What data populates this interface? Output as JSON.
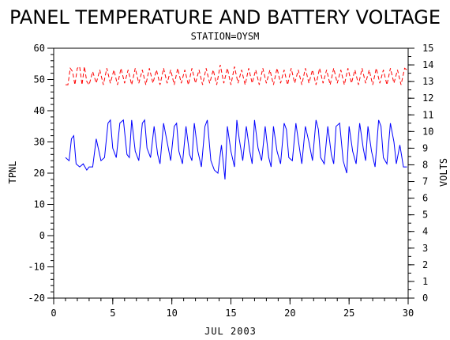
{
  "chart_data": {
    "type": "line",
    "title": "PANEL TEMPERATURE AND BATTERY VOLTAGE",
    "subtitle": "STATION=OYSM",
    "xlabel": "JUL 2003",
    "ylabel_left": "TPNL",
    "ylabel_right": "VOLTS",
    "xlim": [
      0,
      30
    ],
    "ylim_left": [
      -20,
      60
    ],
    "ylim_right": [
      0,
      15
    ],
    "x_ticks": [
      0,
      5,
      10,
      15,
      20,
      25,
      30
    ],
    "y_left_ticks": [
      -20,
      -10,
      0,
      10,
      20,
      30,
      40,
      50,
      60
    ],
    "y_right_ticks": [
      0,
      1,
      2,
      3,
      4,
      5,
      6,
      7,
      8,
      9,
      10,
      11,
      12,
      13,
      14,
      15
    ],
    "series": [
      {
        "axis": "left",
        "color": "#0000ff",
        "style": "solid",
        "x": [
          1.0,
          1.3,
          1.5,
          1.7,
          1.9,
          2.2,
          2.5,
          2.8,
          3.0,
          3.3,
          3.6,
          4.0,
          4.3,
          4.6,
          4.8,
          5.0,
          5.3,
          5.6,
          5.9,
          6.2,
          6.4,
          6.6,
          6.9,
          7.2,
          7.5,
          7.7,
          7.9,
          8.2,
          8.5,
          8.8,
          9.0,
          9.3,
          9.6,
          9.9,
          10.2,
          10.4,
          10.6,
          10.9,
          11.2,
          11.5,
          11.7,
          11.9,
          12.2,
          12.5,
          12.8,
          13.0,
          13.3,
          13.6,
          13.9,
          14.2,
          14.5,
          14.7,
          15.0,
          15.3,
          15.5,
          15.7,
          16.0,
          16.3,
          16.6,
          16.8,
          17.0,
          17.3,
          17.6,
          17.9,
          18.2,
          18.4,
          18.6,
          18.9,
          19.2,
          19.5,
          19.7,
          19.9,
          20.2,
          20.5,
          20.8,
          21.0,
          21.3,
          21.6,
          21.9,
          22.2,
          22.4,
          22.6,
          22.9,
          23.2,
          23.5,
          23.7,
          23.9,
          24.2,
          24.5,
          24.8,
          25.0,
          25.3,
          25.6,
          25.9,
          26.2,
          26.4,
          26.6,
          26.9,
          27.2,
          27.5,
          27.7,
          27.9,
          28.2,
          28.5,
          28.8,
          29.0,
          29.3,
          29.6,
          29.9
        ],
        "y": [
          25,
          24,
          31,
          32,
          23,
          22,
          23,
          21,
          22,
          22,
          31,
          24,
          25,
          36,
          37,
          28,
          25,
          36,
          37,
          26,
          25,
          37,
          27,
          24,
          36,
          37,
          28,
          25,
          35,
          26,
          23,
          36,
          30,
          24,
          35,
          36,
          27,
          23,
          35,
          26,
          24,
          36,
          27,
          22,
          35,
          37,
          24,
          21,
          20,
          29,
          18,
          35,
          27,
          22,
          37,
          31,
          24,
          35,
          27,
          23,
          37,
          28,
          24,
          35,
          25,
          22,
          35,
          27,
          23,
          36,
          34,
          25,
          24,
          36,
          28,
          23,
          35,
          30,
          24,
          37,
          34,
          25,
          23,
          35,
          26,
          23,
          35,
          36,
          24,
          20,
          35,
          27,
          23,
          36,
          28,
          24,
          35,
          27,
          22,
          37,
          35,
          25,
          23,
          36,
          30,
          23,
          29,
          22,
          22
        ]
      },
      {
        "axis": "right",
        "color": "#ff0000",
        "style": "dashed",
        "x": [
          1.0,
          1.2,
          1.4,
          1.6,
          1.8,
          2.0,
          2.2,
          2.4,
          2.6,
          2.8,
          3.0,
          3.3,
          3.6,
          3.9,
          4.2,
          4.5,
          4.8,
          5.1,
          5.4,
          5.7,
          6.0,
          6.3,
          6.6,
          6.9,
          7.2,
          7.5,
          7.8,
          8.1,
          8.4,
          8.7,
          9.0,
          9.3,
          9.6,
          9.9,
          10.2,
          10.5,
          10.8,
          11.1,
          11.4,
          11.7,
          12.0,
          12.3,
          12.6,
          12.9,
          13.2,
          13.5,
          13.8,
          14.1,
          14.4,
          14.7,
          15.0,
          15.3,
          15.6,
          15.9,
          16.2,
          16.5,
          16.8,
          17.1,
          17.4,
          17.7,
          18.0,
          18.3,
          18.6,
          18.9,
          19.2,
          19.5,
          19.8,
          20.1,
          20.4,
          20.7,
          21.0,
          21.3,
          21.6,
          21.9,
          22.2,
          22.5,
          22.8,
          23.1,
          23.4,
          23.7,
          24.0,
          24.3,
          24.6,
          24.9,
          25.2,
          25.5,
          25.8,
          26.1,
          26.4,
          26.7,
          27.0,
          27.3,
          27.6,
          27.9,
          28.2,
          28.5,
          28.8,
          29.1,
          29.4,
          29.7,
          29.9
        ],
        "y": [
          12.8,
          12.8,
          13.8,
          13.6,
          12.8,
          13.8,
          13.9,
          12.8,
          13.9,
          13.0,
          12.8,
          13.6,
          12.9,
          13.7,
          12.8,
          13.8,
          12.9,
          13.7,
          12.8,
          13.8,
          12.9,
          13.7,
          12.8,
          13.8,
          12.9,
          13.7,
          12.8,
          13.8,
          12.9,
          13.7,
          12.8,
          13.8,
          12.9,
          13.7,
          12.8,
          13.8,
          12.9,
          13.7,
          12.8,
          13.8,
          12.9,
          13.7,
          12.8,
          13.8,
          12.9,
          13.7,
          12.8,
          14.0,
          12.9,
          13.8,
          12.8,
          13.9,
          12.9,
          13.7,
          12.8,
          13.8,
          12.9,
          13.7,
          12.8,
          13.8,
          12.9,
          13.7,
          12.8,
          13.8,
          12.9,
          13.7,
          12.8,
          13.8,
          12.9,
          13.7,
          12.8,
          13.8,
          12.9,
          13.7,
          12.8,
          13.8,
          12.9,
          13.7,
          12.8,
          13.8,
          12.9,
          13.7,
          12.8,
          13.8,
          12.9,
          13.7,
          12.8,
          13.8,
          12.9,
          13.7,
          12.8,
          13.8,
          12.9,
          13.7,
          12.8,
          13.8,
          12.9,
          13.7,
          12.8,
          13.8,
          13.7
        ]
      }
    ]
  }
}
